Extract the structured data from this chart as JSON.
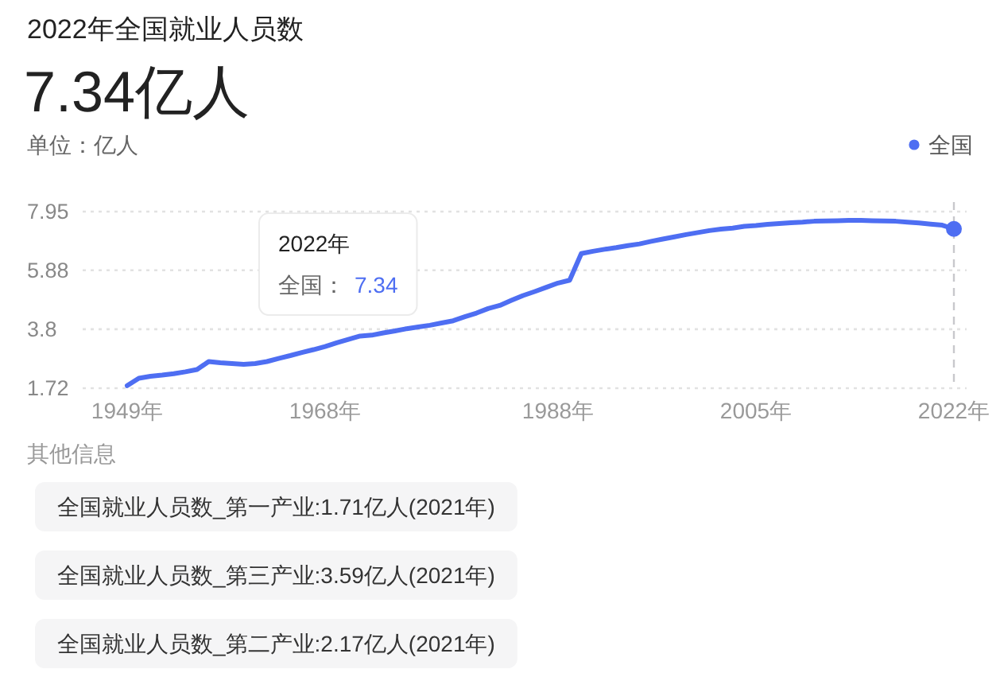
{
  "chart_data": {
    "type": "line",
    "title": "2022年全国就业人员数",
    "subtitle": "7.34亿人",
    "ylabel": "单位：亿人",
    "categories": [
      "1949年",
      null,
      null,
      null,
      null,
      null,
      null,
      null,
      null,
      null,
      null,
      null,
      null,
      null,
      null,
      null,
      null,
      "1968年",
      null,
      null,
      null,
      null,
      null,
      null,
      null,
      null,
      null,
      null,
      null,
      null,
      null,
      null,
      null,
      null,
      null,
      null,
      null,
      "1988年",
      null,
      null,
      null,
      null,
      null,
      null,
      null,
      null,
      null,
      null,
      null,
      null,
      null,
      null,
      null,
      null,
      "2005年",
      null,
      null,
      null,
      null,
      null,
      null,
      null,
      null,
      null,
      null,
      null,
      null,
      null,
      null,
      null,
      null,
      "2022年"
    ],
    "series": [
      {
        "name": "全国",
        "color": "#4e6ef2",
        "values": [
          1.81,
          2.07,
          2.14,
          2.18,
          2.23,
          2.3,
          2.38,
          2.66,
          2.62,
          2.59,
          2.56,
          2.59,
          2.66,
          2.77,
          2.87,
          2.98,
          3.08,
          3.19,
          3.32,
          3.44,
          3.56,
          3.59,
          3.67,
          3.74,
          3.82,
          3.88,
          3.94,
          4.02,
          4.1,
          4.24,
          4.37,
          4.53,
          4.64,
          4.82,
          4.99,
          5.13,
          5.28,
          5.43,
          5.53,
          6.47,
          6.55,
          6.62,
          6.68,
          6.75,
          6.81,
          6.9,
          6.98,
          7.06,
          7.14,
          7.21,
          7.28,
          7.33,
          7.37,
          7.43,
          7.46,
          7.5,
          7.53,
          7.56,
          7.58,
          7.61,
          7.62,
          7.63,
          7.64,
          7.64,
          7.63,
          7.62,
          7.61,
          7.58,
          7.55,
          7.51,
          7.47,
          7.34
        ]
      },
      {
        "type": "scatter",
        "color": "#4e6ef2",
        "marker": "circle",
        "x": [
          "2022年"
        ],
        "values": [
          7.34
        ]
      }
    ],
    "ylim": [
      1.72,
      7.95
    ],
    "yticks": [
      1.72,
      3.8,
      5.88,
      7.95
    ],
    "grid": "y",
    "legend": "top right",
    "line_style": "solid",
    "ref_lines": [
      {
        "axis": "x",
        "value": "2022年",
        "color": "#c8c8cc",
        "line_style": "dashed"
      }
    ],
    "annotations": [
      "2022年",
      "全国：",
      "7.34",
      "其他信息",
      "全国就业人员数_第一产业:1.71亿人(2021年)",
      "全国就业人员数_第三产业:3.59亿人(2021年)",
      "全国就业人员数_第二产业:2.17亿人(2021年)"
    ]
  }
}
